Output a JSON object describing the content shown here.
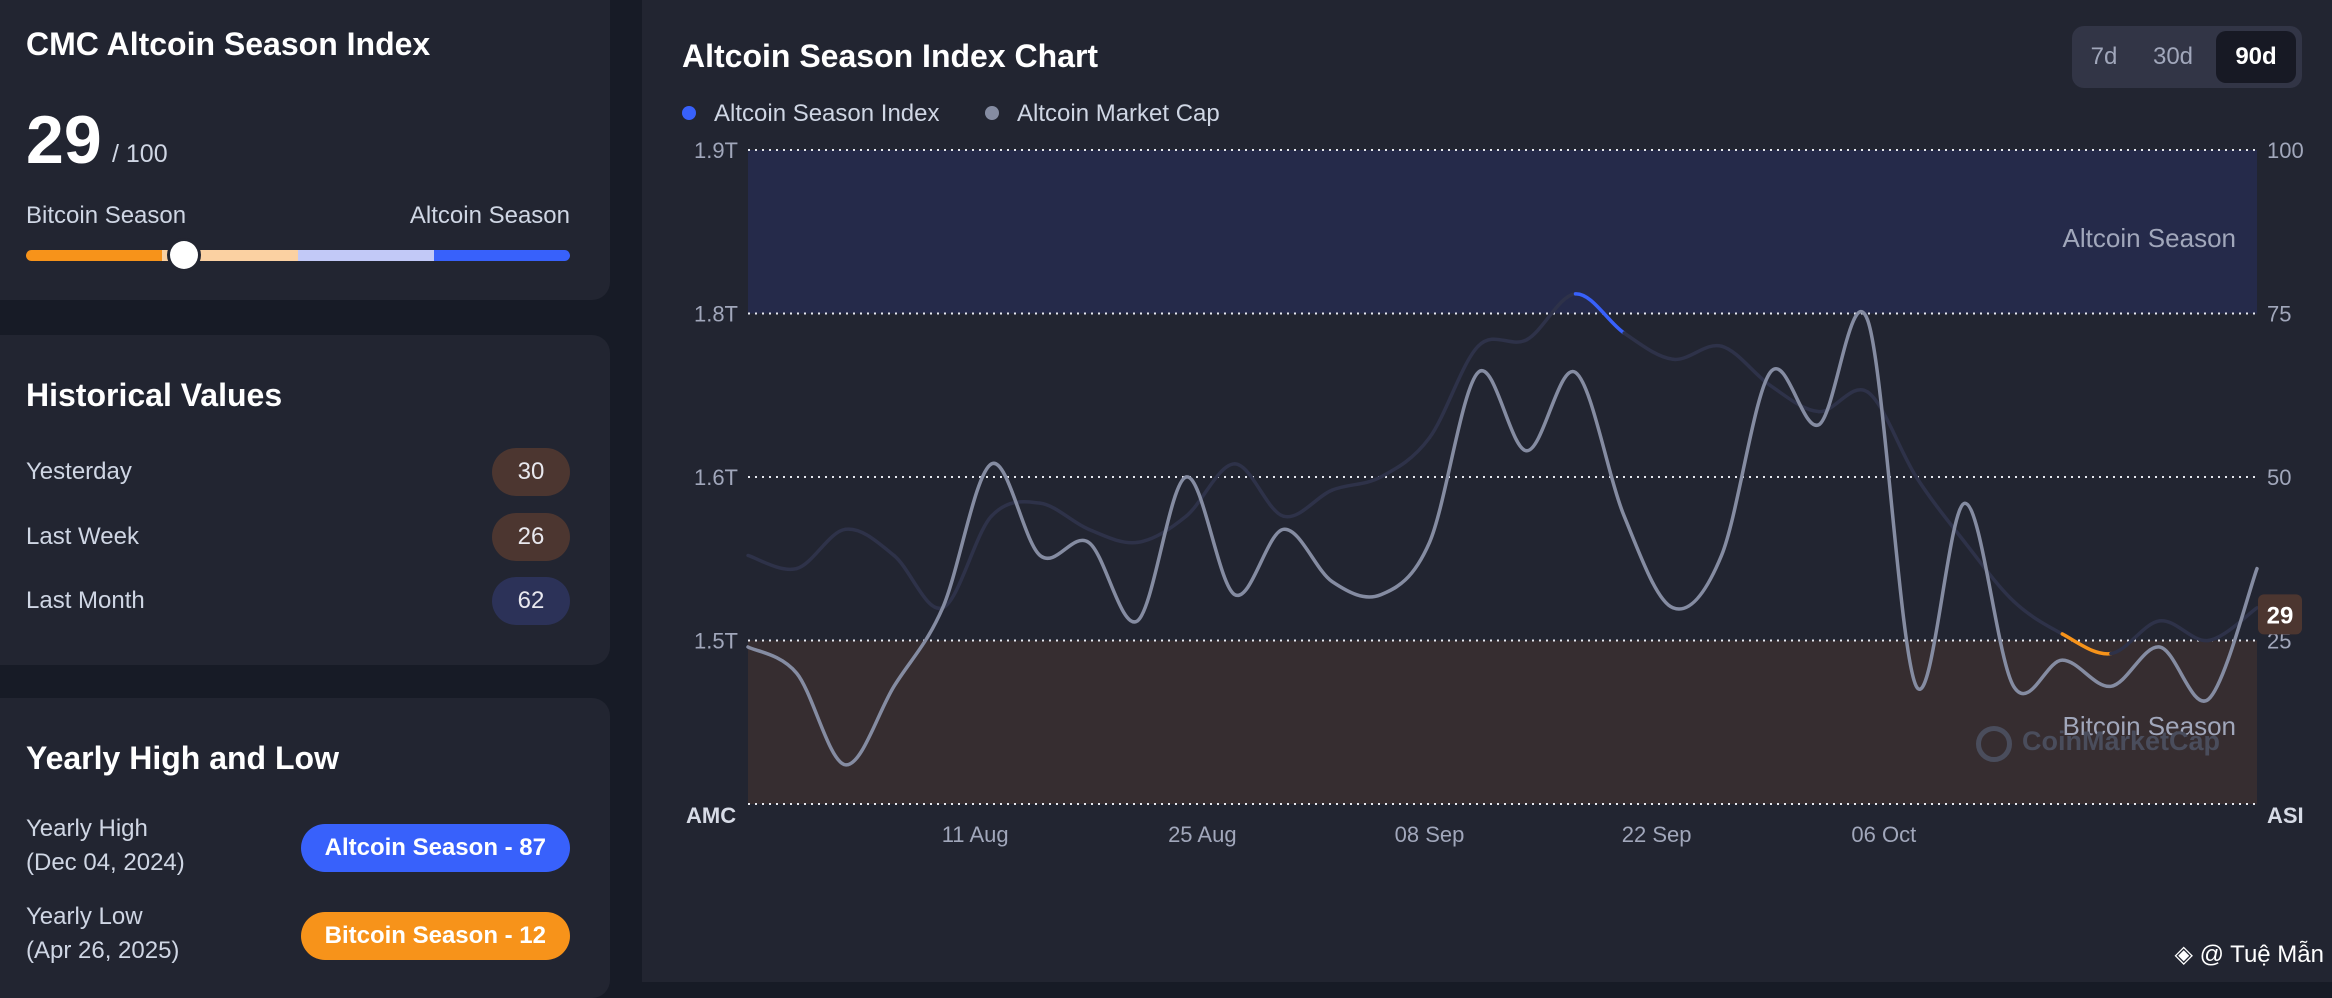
{
  "index_card": {
    "title": "CMC Altcoin Season Index",
    "value": "29",
    "max_label": "/ 100",
    "left_label": "Bitcoin Season",
    "right_label": "Altcoin Season",
    "position": 29,
    "segments": [
      "#f7931a",
      "#fbd1a2",
      "#c2c9f7",
      "#3861fb"
    ]
  },
  "historical": {
    "title": "Historical Values",
    "rows": [
      {
        "label": "Yesterday",
        "value": "30",
        "color": "#4c3630"
      },
      {
        "label": "Last Week",
        "value": "26",
        "color": "#4c3630"
      },
      {
        "label": "Last Month",
        "value": "62",
        "color": "#2c3258"
      }
    ]
  },
  "yearly": {
    "title": "Yearly High and Low",
    "high": {
      "label": "Yearly High",
      "date": "(Dec 04, 2024)",
      "pill": "Altcoin Season - 87",
      "color": "#3861fb"
    },
    "low": {
      "label": "Yearly Low",
      "date": "(Apr 26, 2025)",
      "pill": "Bitcoin Season - 12",
      "color": "#f7931a"
    }
  },
  "chart_panel": {
    "title": "Altcoin Season Index Chart",
    "tabs": [
      "7d",
      "30d",
      "90d"
    ],
    "active_tab": "90d",
    "watermark": "CoinMarketCap",
    "credit": "@ Tuệ Mẫn"
  },
  "colors": {
    "index_line": "#3861fb",
    "market_cap_line": "#858ca2",
    "bitcoin_zone": "#f7931a",
    "neutral_line": "#2e3249",
    "current_badge": "#4c3630"
  },
  "chart_data": {
    "type": "line",
    "title": "Altcoin Season Index Chart",
    "x_ticks": [
      "11 Aug",
      "25 Aug",
      "08 Sep",
      "22 Sep",
      "06 Oct"
    ],
    "x_range": [
      "2025-07-28",
      "2025-10-29"
    ],
    "left_axis": {
      "label": "AMC",
      "ticks": [
        "1.9T",
        "1.8T",
        "1.6T",
        "1.5T"
      ],
      "range_T": [
        1.4,
        1.9
      ]
    },
    "right_axis": {
      "label": "ASI",
      "ticks": [
        "100",
        "75",
        "50",
        "25"
      ],
      "range": [
        0,
        100
      ]
    },
    "zones": [
      {
        "name": "Altcoin Season",
        "from": 75,
        "to": 100
      },
      {
        "name": "Bitcoin Season",
        "from": 0,
        "to": 25
      }
    ],
    "current_value": "29",
    "legend_position": "top-left",
    "grid": "dotted horizontal",
    "series": [
      {
        "name": "Altcoin Season Index",
        "axis": "right",
        "x": [
          "2025-07-28",
          "2025-07-31",
          "2025-08-03",
          "2025-08-06",
          "2025-08-09",
          "2025-08-12",
          "2025-08-15",
          "2025-08-18",
          "2025-08-21",
          "2025-08-24",
          "2025-08-27",
          "2025-08-30",
          "2025-09-02",
          "2025-09-05",
          "2025-09-08",
          "2025-09-11",
          "2025-09-14",
          "2025-09-17",
          "2025-09-20",
          "2025-09-23",
          "2025-09-26",
          "2025-09-29",
          "2025-10-02",
          "2025-10-05",
          "2025-10-08",
          "2025-10-11",
          "2025-10-14",
          "2025-10-17",
          "2025-10-20",
          "2025-10-23",
          "2025-10-26",
          "2025-10-29"
        ],
        "values": [
          38,
          36,
          42,
          38,
          30,
          44,
          46,
          42,
          40,
          44,
          52,
          44,
          48,
          50,
          56,
          70,
          71,
          78,
          72,
          68,
          70,
          64,
          60,
          63,
          50,
          40,
          31,
          26,
          23,
          28,
          25,
          30
        ]
      },
      {
        "name": "Altcoin Market Cap",
        "axis": "left",
        "x": [
          "2025-07-28",
          "2025-07-31",
          "2025-08-03",
          "2025-08-06",
          "2025-08-09",
          "2025-08-12",
          "2025-08-15",
          "2025-08-18",
          "2025-08-21",
          "2025-08-24",
          "2025-08-27",
          "2025-08-30",
          "2025-09-02",
          "2025-09-05",
          "2025-09-08",
          "2025-09-11",
          "2025-09-14",
          "2025-09-17",
          "2025-09-20",
          "2025-09-23",
          "2025-09-26",
          "2025-09-29",
          "2025-10-02",
          "2025-10-05",
          "2025-10-08",
          "2025-10-11",
          "2025-10-14",
          "2025-10-17",
          "2025-10-20",
          "2025-10-23",
          "2025-10-26",
          "2025-10-29"
        ],
        "values_T": [
          1.52,
          1.5,
          1.43,
          1.49,
          1.55,
          1.66,
          1.59,
          1.6,
          1.54,
          1.65,
          1.56,
          1.61,
          1.57,
          1.56,
          1.6,
          1.73,
          1.67,
          1.73,
          1.62,
          1.55,
          1.59,
          1.73,
          1.69,
          1.77,
          1.49,
          1.63,
          1.49,
          1.51,
          1.49,
          1.52,
          1.48,
          1.58
        ]
      }
    ]
  }
}
